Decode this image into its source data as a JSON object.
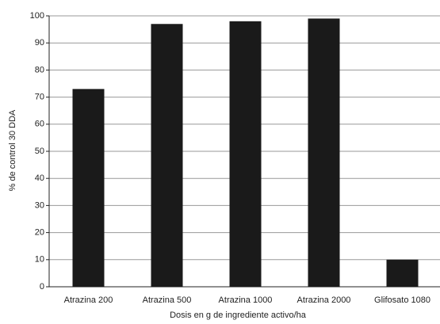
{
  "chart_data": {
    "type": "bar",
    "categories": [
      "Atrazina 200",
      "Atrazina 500",
      "Atrazina 1000",
      "Atrazina 2000",
      "Glifosato 1080"
    ],
    "values": [
      73,
      97,
      98,
      99,
      10
    ],
    "color": "#1a1a1a",
    "ylim": [
      0,
      100
    ],
    "yticks": [
      0,
      10,
      20,
      30,
      40,
      50,
      60,
      70,
      80,
      90,
      100
    ],
    "grid": true,
    "x_label": "Dosis en g de ingrediente activo/ha",
    "y_label": "% de control 30 DDA"
  }
}
